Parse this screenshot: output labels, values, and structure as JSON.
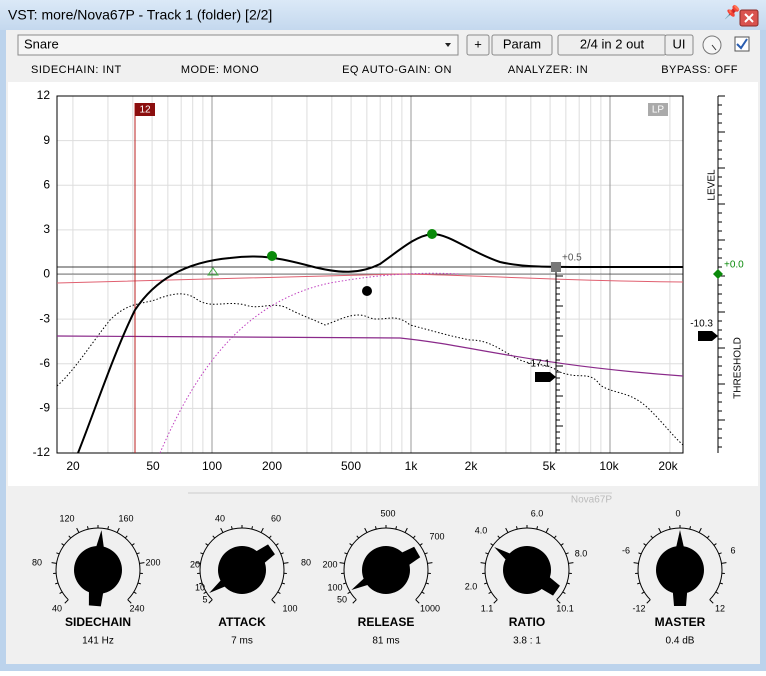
{
  "window": {
    "title": "VST: more/Nova67P - Track 1 (folder) [2/2]"
  },
  "toolbar": {
    "preset": "Snare",
    "buttons": [
      "+",
      "Param",
      "2/4 in 2 out",
      "UI"
    ]
  },
  "status": [
    "SIDECHAIN: INT",
    "MODE: MONO",
    "EQ AUTO-GAIN: ON",
    "ANALYZER: IN",
    "BYPASS: OFF"
  ],
  "graph": {
    "y_labels": [
      "12",
      "9",
      "6",
      "3",
      "0",
      "-3",
      "-6",
      "-9",
      "-12"
    ],
    "x_labels": [
      "20",
      "50",
      "100",
      "200",
      "500",
      "1k",
      "2k",
      "5k",
      "10k",
      "20k"
    ],
    "marker": "12",
    "filter": "LP",
    "gain_label": "+0.5",
    "threshold_label": "-17.1",
    "level_label": "LEVEL",
    "threshold_axis_label": "THRESHOLD",
    "level_value": "+0.0",
    "threshold_value": "-10.3",
    "watermark": "Nova67P"
  },
  "knobs": [
    {
      "name": "SIDECHAIN",
      "value": "141 Hz",
      "scale": [
        "40",
        "80",
        "120",
        "160",
        "200",
        "240"
      ]
    },
    {
      "name": "ATTACK",
      "value": "7 ms",
      "scale": [
        "5",
        "10",
        "20",
        "40",
        "60",
        "80",
        "100"
      ]
    },
    {
      "name": "RELEASE",
      "value": "81 ms",
      "scale": [
        "50",
        "100",
        "200",
        "500",
        "700",
        "1000"
      ]
    },
    {
      "name": "RATIO",
      "value": "3.8 : 1",
      "scale": [
        "1.1",
        "2.0",
        "4.0",
        "6.0",
        "8.0",
        "10.1"
      ]
    },
    {
      "name": "MASTER",
      "value": "0.4 dB",
      "scale": [
        "-12",
        "-6",
        "0",
        "6",
        "12"
      ]
    }
  ]
}
